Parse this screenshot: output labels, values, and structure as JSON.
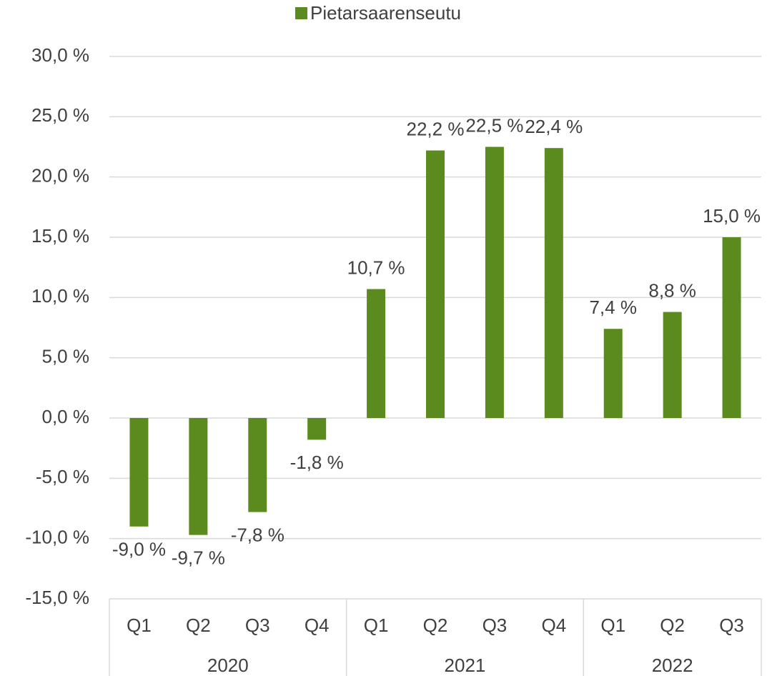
{
  "chart_data": {
    "type": "bar",
    "legend": "Pietarsaarenseutu",
    "color": "#5b8a1e",
    "groups": [
      {
        "label": "2020",
        "categories": [
          "Q1",
          "Q2",
          "Q3",
          "Q4"
        ]
      },
      {
        "label": "2021",
        "categories": [
          "Q1",
          "Q2",
          "Q3",
          "Q4"
        ]
      },
      {
        "label": "2022",
        "categories": [
          "Q1",
          "Q2",
          "Q3"
        ]
      }
    ],
    "values": [
      -9.0,
      -9.7,
      -7.8,
      -1.8,
      10.7,
      22.2,
      22.5,
      22.4,
      7.4,
      8.8,
      15.0
    ],
    "value_labels": [
      "-9,0 %",
      "-9,7 %",
      "-7,8 %",
      "-1,8 %",
      "10,7 %",
      "22,2 %",
      "22,5 %",
      "22,4 %",
      "7,4 %",
      "8,8 %",
      "15,0 %"
    ],
    "ylim": [
      -15,
      30
    ],
    "yticks": [
      {
        "value": -15,
        "label": "-15,0 %"
      },
      {
        "value": -10,
        "label": "-10,0 %"
      },
      {
        "value": -5,
        "label": "-5,0 %"
      },
      {
        "value": 0,
        "label": "0,0 %"
      },
      {
        "value": 5,
        "label": "5,0 %"
      },
      {
        "value": 10,
        "label": "10,0 %"
      },
      {
        "value": 15,
        "label": "15,0 %"
      },
      {
        "value": 20,
        "label": "20,0 %"
      },
      {
        "value": 25,
        "label": "25,0 %"
      },
      {
        "value": 30,
        "label": "30,0 %"
      }
    ],
    "grid": true
  }
}
